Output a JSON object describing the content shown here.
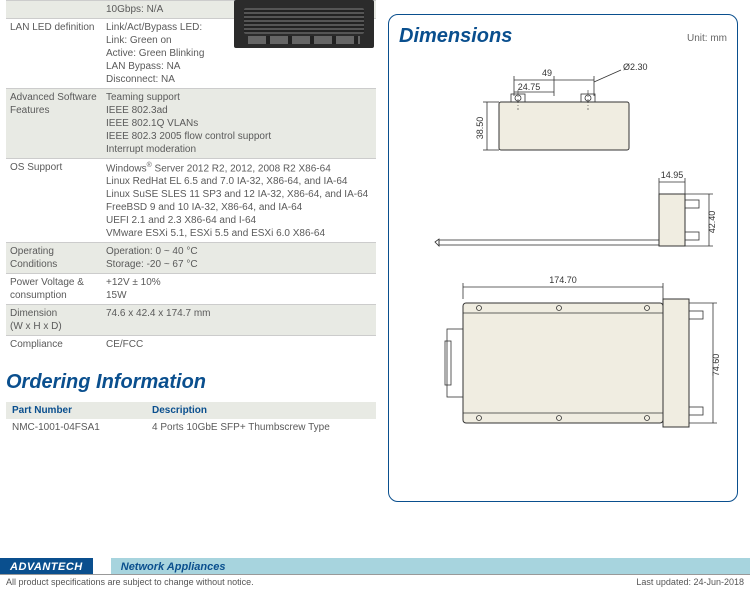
{
  "spec_rows": [
    {
      "cls": "odd",
      "label": "",
      "value": "10Gbps: N/A"
    },
    {
      "cls": "even",
      "label": "LAN LED definition",
      "value": "Link/Act/Bypass LED:\nLink: Green on\nActive: Green Blinking\nLAN Bypass: NA\nDisconnect: NA"
    },
    {
      "cls": "odd",
      "label": "Advanced Software Features",
      "value": "Teaming support\nIEEE 802.3ad\nIEEE 802.1Q VLANs\nIEEE 802.3 2005 flow control support\nInterrupt moderation"
    },
    {
      "cls": "even",
      "label": "OS Support",
      "value": "Windows® Server 2012 R2, 2012, 2008 R2 X86-64\nLinux RedHat EL 6.5 and 7.0 IA-32, X86-64, and IA-64\nLinux SuSE SLES 11 SP3 and 12 IA-32, X86-64, and IA-64\nFreeBSD 9 and 10 IA-32, X86-64, and IA-64\nUEFI 2.1 and 2.3 X86-64 and I-64\nVMware ESXi 5.1, ESXi 5.5 and ESXi 6.0 X86-64"
    },
    {
      "cls": "odd",
      "label": "Operating Conditions",
      "value": "Operation: 0 ~ 40 °C\nStorage: -20 ~ 67 °C"
    },
    {
      "cls": "even",
      "label": "Power Voltage & consumption",
      "value": "+12V ± 10%\n15W"
    },
    {
      "cls": "odd",
      "label": "Dimension\n(W x H x D)",
      "value": "74.6 x 42.4 x 174.7 mm"
    },
    {
      "cls": "even",
      "label": "Compliance",
      "value": "CE/FCC"
    }
  ],
  "headings": {
    "ordering": "Ordering Information",
    "dimensions": "Dimensions",
    "unit": "Unit: mm"
  },
  "order_headers": {
    "pn": "Part Number",
    "desc": "Description"
  },
  "order_rows": [
    {
      "pn": "NMC-1001-04FSA1",
      "desc": "4 Ports 10GbE SFP+ Thumbscrew Type"
    }
  ],
  "dims": {
    "w49": "49",
    "w2475": "24.75",
    "d230": "Ø2.30",
    "h3850": "38.50",
    "w1495": "14.95",
    "h4240": "42.40",
    "w17470": "174.70",
    "h7460": "74.60"
  },
  "footer": {
    "brand": "ADVANTECH",
    "cat": "Network Appliances",
    "disclaimer": "All product specifications are subject to change without notice.",
    "updated": "Last updated: 24-Jun-2018"
  },
  "colors": {
    "brand_blue": "#0a4f8e",
    "row_alt": "#e8eae4",
    "box_fill": "#f0ede1",
    "footer_light": "#a7d4de"
  }
}
